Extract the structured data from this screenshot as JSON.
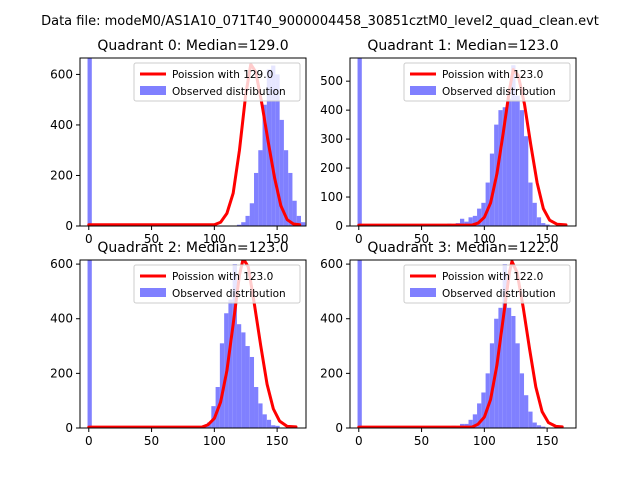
{
  "suptitle": "Data file: modeM0/AS1A10_071T40_9000004458_30851cztM0_level2_quad_clean.evt",
  "colors": {
    "bars": "#8080ff",
    "fit": "#ff0000",
    "axes": "#000000"
  },
  "chart_data": [
    {
      "type": "bar",
      "title": "Quadrant 0: Median=129.0",
      "legend": {
        "placement": "top-right",
        "entries": [
          "Poission with 129.0",
          "Observed distribution"
        ]
      },
      "xlim": [
        -7,
        173
      ],
      "ylim": [
        0,
        665
      ],
      "xticks": [
        0,
        50,
        100,
        150
      ],
      "yticks": [
        0,
        200,
        400,
        600
      ],
      "bins": {
        "start": -1,
        "width": 3.4
      },
      "values": [
        670,
        0,
        0,
        0,
        0,
        0,
        0,
        0,
        0,
        0,
        0,
        0,
        0,
        0,
        0,
        0,
        0,
        0,
        0,
        0,
        0,
        0,
        0,
        0,
        0,
        0,
        0,
        5,
        0,
        0,
        0,
        0,
        0,
        0,
        0,
        5,
        15,
        40,
        90,
        210,
        300,
        480,
        620,
        635,
        600,
        420,
        300,
        210,
        100,
        40,
        15,
        5
      ],
      "fit": {
        "median": 129,
        "x": [
          0,
          100,
          105,
          110,
          115,
          120,
          125,
          129,
          133,
          138,
          143,
          148,
          153,
          158,
          163,
          168
        ],
        "y": [
          5,
          5,
          15,
          50,
          130,
          300,
          520,
          640,
          610,
          480,
          330,
          190,
          80,
          25,
          8,
          5
        ]
      }
    },
    {
      "type": "bar",
      "title": "Quadrant 1: Median=123.0",
      "legend": {
        "placement": "top-right",
        "entries": [
          "Poission with 123.0",
          "Observed distribution"
        ]
      },
      "xlim": [
        -7,
        173
      ],
      "ylim": [
        0,
        580
      ],
      "xticks": [
        0,
        50,
        100,
        150
      ],
      "yticks": [
        0,
        100,
        200,
        300,
        400,
        500
      ],
      "bins": {
        "start": -1,
        "width": 3.4
      },
      "values": [
        580,
        0,
        0,
        0,
        0,
        0,
        0,
        0,
        0,
        0,
        0,
        0,
        0,
        0,
        0,
        0,
        0,
        0,
        0,
        0,
        0,
        8,
        5,
        10,
        25,
        15,
        30,
        35,
        60,
        80,
        150,
        250,
        350,
        400,
        410,
        440,
        555,
        450,
        400,
        310,
        150,
        80,
        30,
        10,
        5,
        2,
        0,
        0,
        0,
        0,
        0,
        0,
        0
      ],
      "fit": {
        "median": 123,
        "x": [
          0,
          90,
          95,
          100,
          105,
          110,
          115,
          120,
          123,
          127,
          132,
          137,
          142,
          147,
          152,
          158,
          165
        ],
        "y": [
          3,
          3,
          10,
          30,
          80,
          180,
          320,
          470,
          540,
          520,
          420,
          280,
          150,
          60,
          20,
          6,
          4
        ]
      }
    },
    {
      "type": "bar",
      "title": "Quadrant 2: Median=123.0",
      "legend": {
        "placement": "top-right",
        "entries": [
          "Poission with 123.0",
          "Observed distribution"
        ]
      },
      "xlim": [
        -7,
        173
      ],
      "ylim": [
        0,
        615
      ],
      "xticks": [
        0,
        50,
        100,
        150
      ],
      "yticks": [
        0,
        200,
        400,
        600
      ],
      "bins": {
        "start": -1,
        "width": 3.4
      },
      "values": [
        615,
        0,
        0,
        0,
        0,
        0,
        0,
        0,
        0,
        0,
        0,
        0,
        0,
        0,
        0,
        0,
        0,
        0,
        0,
        0,
        0,
        5,
        0,
        0,
        0,
        0,
        0,
        10,
        20,
        80,
        150,
        310,
        420,
        470,
        600,
        380,
        350,
        300,
        260,
        150,
        90,
        50,
        30,
        10,
        8,
        0,
        0,
        0,
        0,
        0,
        0
      ],
      "fit": {
        "median": 123,
        "x": [
          0,
          90,
          95,
          100,
          105,
          110,
          115,
          120,
          123,
          127,
          132,
          137,
          142,
          147,
          152,
          158,
          165
        ],
        "y": [
          3,
          3,
          12,
          35,
          95,
          210,
          380,
          560,
          620,
          590,
          450,
          300,
          160,
          70,
          25,
          6,
          4
        ]
      }
    },
    {
      "type": "bar",
      "title": "Quadrant 3: Median=122.0",
      "legend": {
        "placement": "top-right",
        "entries": [
          "Poission with 122.0",
          "Observed distribution"
        ]
      },
      "xlim": [
        -7,
        173
      ],
      "ylim": [
        0,
        615
      ],
      "xticks": [
        0,
        50,
        100,
        150
      ],
      "yticks": [
        0,
        200,
        400,
        600
      ],
      "bins": {
        "start": -1,
        "width": 3.4
      },
      "values": [
        615,
        0,
        0,
        0,
        0,
        0,
        0,
        0,
        0,
        0,
        0,
        0,
        0,
        0,
        0,
        0,
        0,
        0,
        5,
        0,
        5,
        0,
        8,
        0,
        15,
        15,
        30,
        50,
        90,
        130,
        200,
        310,
        400,
        440,
        600,
        440,
        410,
        310,
        200,
        120,
        60,
        20,
        10,
        5,
        0,
        0,
        0,
        0,
        0,
        0
      ],
      "fit": {
        "median": 122,
        "x": [
          0,
          90,
          95,
          100,
          105,
          110,
          115,
          120,
          122,
          126,
          131,
          136,
          141,
          146,
          151,
          157,
          162
        ],
        "y": [
          3,
          3,
          14,
          40,
          105,
          230,
          400,
          570,
          610,
          570,
          440,
          290,
          150,
          60,
          20,
          6,
          4
        ]
      }
    }
  ]
}
